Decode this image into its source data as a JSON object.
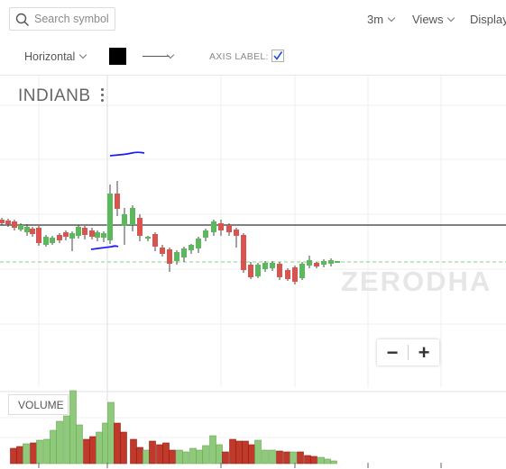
{
  "search": {
    "placeholder": "Search symbol"
  },
  "topbar": {
    "interval": "3m",
    "views": "Views",
    "display": "Display"
  },
  "drawing_toolbar": {
    "line_type": "Horizontal",
    "color": "#000000",
    "axis_label": "AXIS LABEL:",
    "axis_label_checked": true
  },
  "chart": {
    "symbol": "INDIANB",
    "volume_label": "VOLUME",
    "zoom_out": "−",
    "zoom_in": "+",
    "watermark": "ZERODHA",
    "colors": {
      "up": "#5cb85c",
      "down": "#d9534f",
      "up_volume": "#8fc97a",
      "down_volume": "#c0392b",
      "annotation": "#1a1aff"
    }
  }
}
